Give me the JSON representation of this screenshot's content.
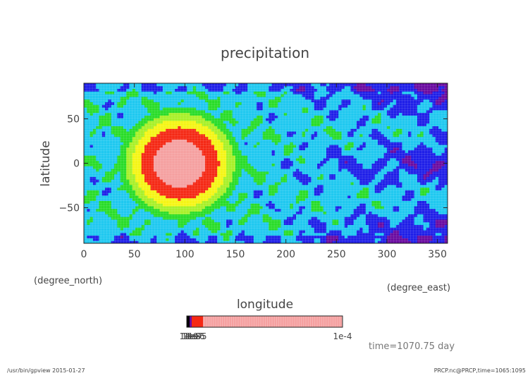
{
  "chart_data": {
    "type": "heatmap",
    "title": "precipitation",
    "xlabel": "longitude",
    "xunit": "(degree_east)",
    "ylabel": "latitude",
    "yunit": "(degree_north)",
    "xlim": [
      0,
      360
    ],
    "ylim": [
      -90,
      90
    ],
    "xticks": [
      0,
      50,
      100,
      150,
      200,
      250,
      300,
      350
    ],
    "yticks": [
      -50,
      0,
      50
    ],
    "xtick_labels": [
      "0",
      "50",
      "100",
      "150",
      "200",
      "250",
      "300",
      "350"
    ],
    "ytick_labels": [
      "−50",
      "0",
      "50"
    ],
    "colorbar": {
      "min_label": "1e-9",
      "max_label": "1e-4",
      "overlap_labels": [
        "1e-9",
        "1e-8",
        "1e-7",
        "1e-6",
        "1e-5"
      ]
    },
    "time_label": "time=1070.75 day",
    "colors": {
      "level_0": "#6a0aa0",
      "level_1": "#1e1ee8",
      "level_2": "#1ec8f0",
      "level_3": "#28dc28",
      "level_4": "#a8f028",
      "level_5": "#f5f514",
      "level_6": "#f52814",
      "level_7": "#f5a0a0"
    }
  },
  "footer": {
    "left": "/usr/bin/gpview  2015-01-27",
    "right": "PRCP.nc@PRCP,time=1065:1095"
  }
}
